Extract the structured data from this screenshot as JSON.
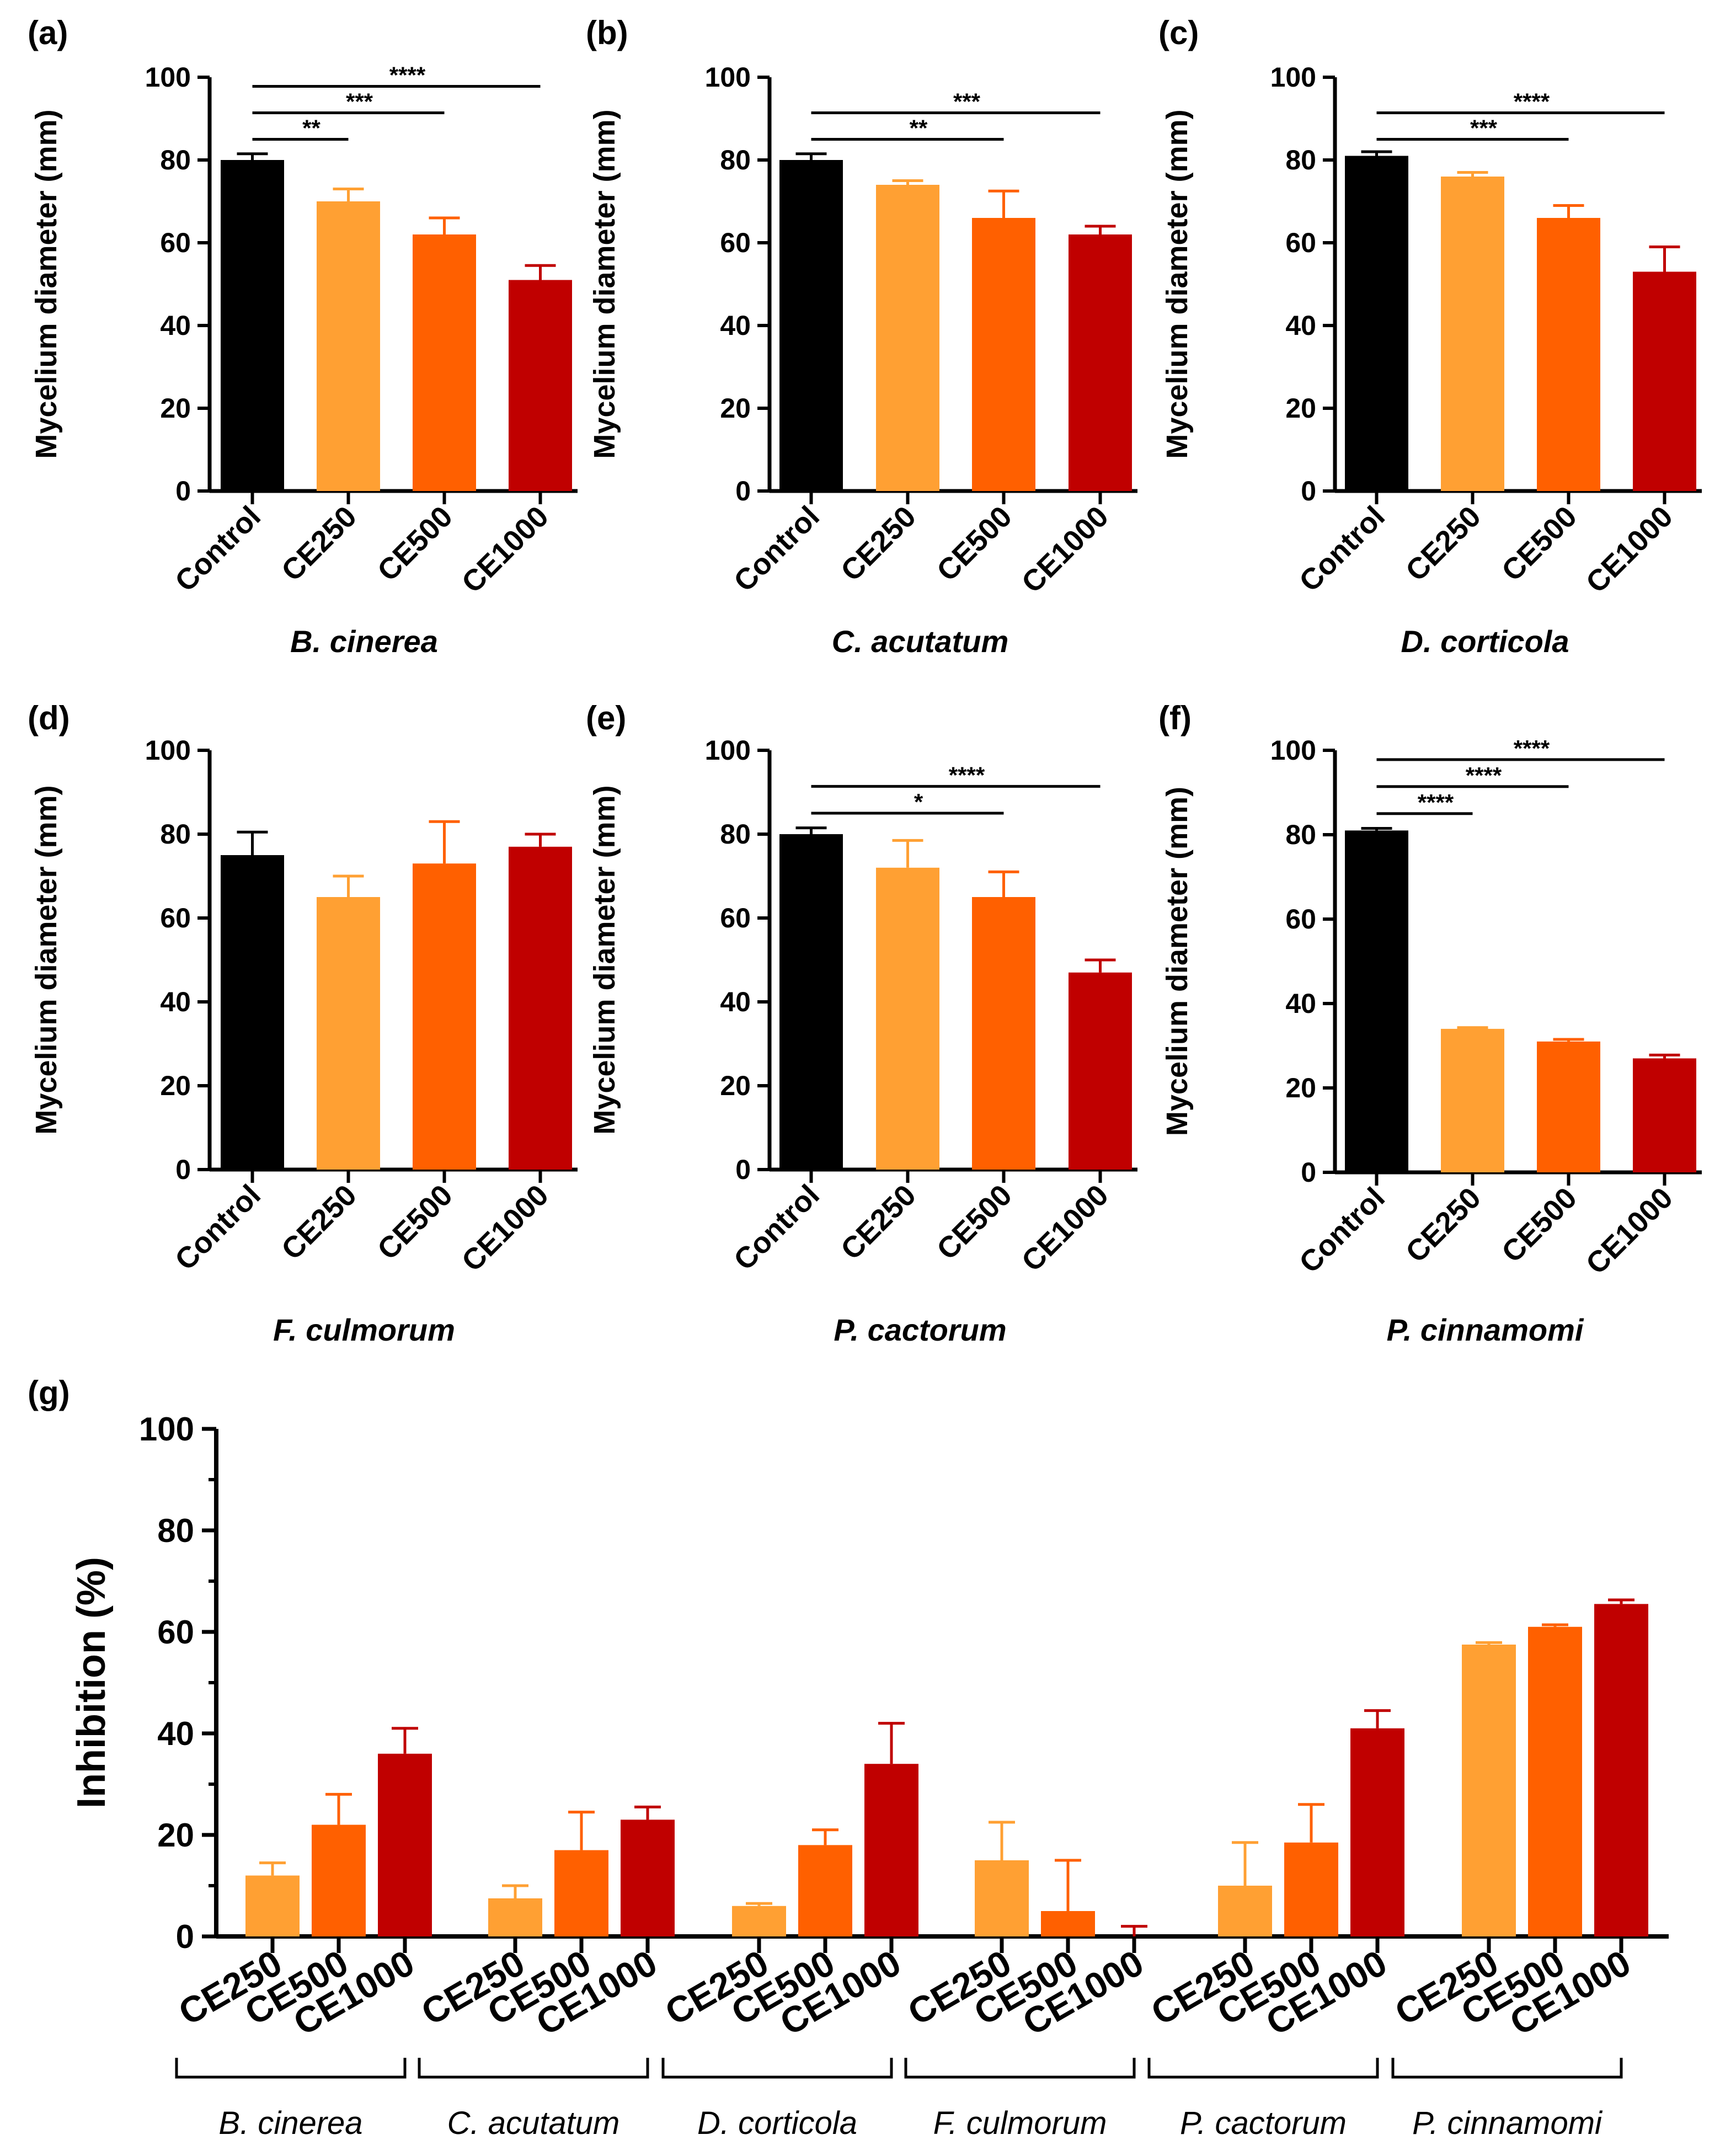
{
  "colors": {
    "Control": "#000000",
    "CE250": "#ffa033",
    "CE500": "#ff6000",
    "CE1000": "#c00000"
  },
  "chart_data": [
    {
      "type": "bar",
      "panel": "(a)",
      "title": "B. cinerea",
      "ylabel": "Mycelium diameter (mm)",
      "ylim": [
        0,
        100
      ],
      "yticks": [
        "0",
        "20",
        "40",
        "60",
        "80",
        "100"
      ],
      "categories": [
        "Control",
        "CE250",
        "CE500",
        "CE1000"
      ],
      "values": [
        80,
        70,
        62,
        51
      ],
      "errors": [
        1.5,
        3,
        4,
        3.5
      ],
      "significance": [
        {
          "from": 0,
          "to": 1,
          "label": "**"
        },
        {
          "from": 0,
          "to": 2,
          "label": "***"
        },
        {
          "from": 0,
          "to": 3,
          "label": "****"
        }
      ]
    },
    {
      "type": "bar",
      "panel": "(b)",
      "title": "C. acutatum",
      "ylabel": "Mycelium diameter (mm)",
      "ylim": [
        0,
        100
      ],
      "yticks": [
        "0",
        "20",
        "40",
        "60",
        "80",
        "100"
      ],
      "categories": [
        "Control",
        "CE250",
        "CE500",
        "CE1000"
      ],
      "values": [
        80,
        74,
        66,
        62
      ],
      "errors": [
        1.5,
        1,
        6.5,
        2
      ],
      "significance": [
        {
          "from": 0,
          "to": 2,
          "label": "**"
        },
        {
          "from": 0,
          "to": 3,
          "label": "***"
        }
      ]
    },
    {
      "type": "bar",
      "panel": "(c)",
      "title": "D. corticola",
      "ylabel": "Mycelium diameter (mm)",
      "ylim": [
        0,
        100
      ],
      "yticks": [
        "0",
        "20",
        "40",
        "60",
        "80",
        "100"
      ],
      "categories": [
        "Control",
        "CE250",
        "CE500",
        "CE1000"
      ],
      "values": [
        81,
        76,
        66,
        53
      ],
      "errors": [
        1,
        1,
        3,
        6
      ],
      "significance": [
        {
          "from": 0,
          "to": 2,
          "label": "***"
        },
        {
          "from": 0,
          "to": 3,
          "label": "****"
        }
      ]
    },
    {
      "type": "bar",
      "panel": "(d)",
      "title": "F. culmorum",
      "ylabel": "Mycelium diameter (mm)",
      "ylim": [
        0,
        100
      ],
      "yticks": [
        "0",
        "20",
        "40",
        "60",
        "80",
        "100"
      ],
      "categories": [
        "Control",
        "CE250",
        "CE500",
        "CE1000"
      ],
      "values": [
        75,
        65,
        73,
        77
      ],
      "errors": [
        5.5,
        5,
        10,
        3
      ],
      "significance": []
    },
    {
      "type": "bar",
      "panel": "(e)",
      "title": "P. cactorum",
      "ylabel": "Mycelium diameter (mm)",
      "ylim": [
        0,
        100
      ],
      "yticks": [
        "0",
        "20",
        "40",
        "60",
        "80",
        "100"
      ],
      "categories": [
        "Control",
        "CE250",
        "CE500",
        "CE1000"
      ],
      "values": [
        80,
        72,
        65,
        47
      ],
      "errors": [
        1.5,
        6.5,
        6,
        3
      ],
      "significance": [
        {
          "from": 0,
          "to": 2,
          "label": "*"
        },
        {
          "from": 0,
          "to": 3,
          "label": "****"
        }
      ]
    },
    {
      "type": "bar",
      "panel": "(f)",
      "title": "P. cinnamomi",
      "ylabel": "Mycelium diameter (mm)",
      "ylim": [
        0,
        100
      ],
      "yticks": [
        "0",
        "20",
        "40",
        "60",
        "80",
        "100"
      ],
      "categories": [
        "Control",
        "CE250",
        "CE500",
        "CE1000"
      ],
      "values": [
        81,
        34,
        31,
        27
      ],
      "errors": [
        0.5,
        0.3,
        0.5,
        0.8
      ],
      "significance": [
        {
          "from": 0,
          "to": 1,
          "label": "****"
        },
        {
          "from": 0,
          "to": 2,
          "label": "****"
        },
        {
          "from": 0,
          "to": 3,
          "label": "****"
        }
      ]
    },
    {
      "type": "bar",
      "panel": "(g)",
      "ylabel": "Inhibition (%)",
      "ylim": [
        0,
        100
      ],
      "yticks": [
        "0",
        "20",
        "40",
        "60",
        "80",
        "100"
      ],
      "categories": [
        "CE250",
        "CE500",
        "CE1000"
      ],
      "groups": [
        "B. cinerea",
        "C. acutatum",
        "D. corticola",
        "F. culmorum",
        "P. cactorum",
        "P. cinnamomi"
      ],
      "series": [
        {
          "name": "B. cinerea",
          "values": [
            12,
            22,
            36
          ],
          "errors": [
            2.5,
            6,
            5
          ]
        },
        {
          "name": "C. acutatum",
          "values": [
            7.5,
            17,
            23
          ],
          "errors": [
            2.5,
            7.5,
            2.5
          ]
        },
        {
          "name": "D. corticola",
          "values": [
            6,
            18,
            34
          ],
          "errors": [
            0.5,
            3,
            8
          ]
        },
        {
          "name": "F. culmorum",
          "values": [
            15,
            5,
            0
          ],
          "errors": [
            7.5,
            10,
            2
          ]
        },
        {
          "name": "P. cactorum",
          "values": [
            10,
            18.5,
            41
          ],
          "errors": [
            8.5,
            7.5,
            3.5
          ]
        },
        {
          "name": "P. cinnamomi",
          "values": [
            57.5,
            61,
            65.5
          ],
          "errors": [
            0.4,
            0.4,
            0.8
          ]
        }
      ]
    }
  ]
}
